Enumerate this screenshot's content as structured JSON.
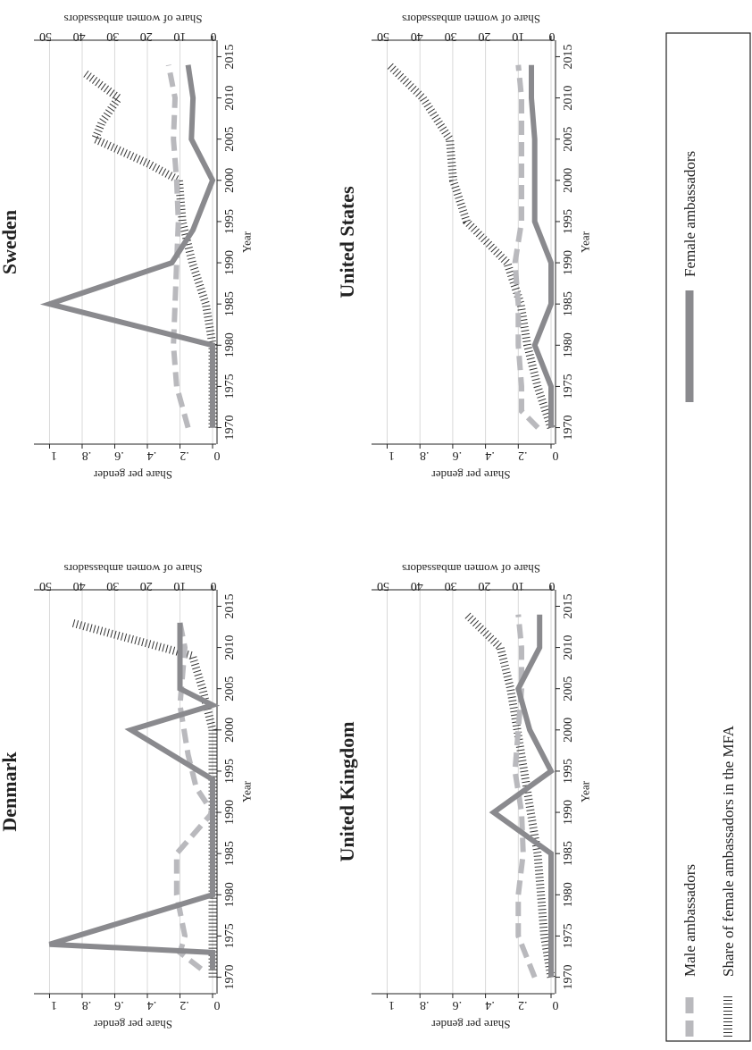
{
  "colors": {
    "female": "#8a8a8e",
    "male": "#b9b9bd",
    "mfa": "#333333",
    "grid": "#d9d9d9",
    "axis": "#222222"
  },
  "legend": {
    "female": "Female ambassadors",
    "male": "Male ambassadors",
    "mfa": "Share of female ambassadors in the MFA"
  },
  "chart_data": [
    {
      "type": "line",
      "title": "Sweden",
      "xlabel": "Year",
      "ylabel": "Share per gender",
      "y2label": "Share of women ambassadors",
      "xticks": [
        "1970",
        "1975",
        "1980",
        "1985",
        "1990",
        "1995",
        "2000",
        "2005",
        "2010",
        "2015"
      ],
      "yticks": [
        "0",
        ".2",
        ".4",
        ".6",
        ".8",
        "1"
      ],
      "y2ticks": [
        "0",
        "10",
        "20",
        "30",
        "40",
        "50"
      ],
      "xlim": [
        1968,
        2017
      ],
      "ylim": [
        0,
        1.03
      ],
      "y2lim": [
        0,
        50
      ],
      "grid": true,
      "series": [
        {
          "name": "Female ambassadors",
          "x": [
            1970,
            1980,
            1985,
            1990,
            1994,
            2000,
            2005,
            2010,
            2014
          ],
          "y": [
            0,
            0,
            1,
            0.25,
            0.12,
            0,
            0.13,
            0.12,
            0.15
          ]
        },
        {
          "name": "Male ambassadors",
          "x": [
            1970,
            1975,
            1980,
            1985,
            1990,
            1995,
            2000,
            2005,
            2010,
            2014
          ],
          "y": [
            0.15,
            0.22,
            0.24,
            0.23,
            0.22,
            0.21,
            0.22,
            0.24,
            0.23,
            0.27
          ]
        },
        {
          "name": "Share of female ambassadors in the MFA",
          "axis": "y2",
          "x": [
            1970,
            1975,
            1980,
            1985,
            1990,
            1995,
            2000,
            2002,
            2005,
            2007,
            2010,
            2013
          ],
          "y": [
            0,
            0,
            0,
            2,
            6,
            9,
            10,
            19,
            35,
            33,
            28,
            38
          ]
        }
      ]
    },
    {
      "type": "line",
      "title": "Denmark",
      "xlabel": "Year",
      "ylabel": "Share per gender",
      "y2label": "Share of women ambassadors",
      "xticks": [
        "1970",
        "1975",
        "1980",
        "1985",
        "1990",
        "1995",
        "2000",
        "2005",
        "2010",
        "2015"
      ],
      "yticks": [
        "0",
        ".2",
        ".4",
        ".6",
        ".8",
        "1"
      ],
      "y2ticks": [
        "0",
        "10",
        "20",
        "30",
        "40",
        "50"
      ],
      "xlim": [
        1968,
        2017
      ],
      "ylim": [
        0,
        1.03
      ],
      "y2lim": [
        0,
        50
      ],
      "grid": true,
      "series": [
        {
          "name": "Female ambassadors",
          "x": [
            1971,
            1973,
            1974,
            1980,
            1985,
            1990,
            1994,
            2000,
            2003,
            2005,
            2010,
            2013
          ],
          "y": [
            0,
            0,
            1,
            0,
            0,
            0,
            0,
            0.5,
            0,
            0.2,
            0.2,
            0.2
          ]
        },
        {
          "name": "Male ambassadors",
          "x": [
            1971,
            1973,
            1975,
            1980,
            1985,
            1990,
            1993,
            1997,
            2003,
            2010,
            2013
          ],
          "y": [
            0.07,
            0.2,
            0.17,
            0.22,
            0.22,
            0,
            0.1,
            0.15,
            0.2,
            0.17,
            0.2
          ]
        },
        {
          "name": "Share of female ambassadors in the MFA",
          "axis": "y2",
          "x": [
            1970,
            1980,
            1990,
            2000,
            2005,
            2009,
            2010,
            2013
          ],
          "y": [
            0,
            0,
            0,
            0,
            3,
            6,
            15,
            42
          ]
        }
      ]
    },
    {
      "type": "line",
      "title": "United States",
      "xlabel": "Year",
      "ylabel": "Share per gender",
      "y2label": "Share of women ambassadors",
      "xticks": [
        "1970",
        "1975",
        "1980",
        "1985",
        "1990",
        "1995",
        "2000",
        "2005",
        "2010",
        "2015"
      ],
      "yticks": [
        "0",
        ".2",
        ".4",
        ".6",
        ".8",
        "1"
      ],
      "y2ticks": [
        "0",
        "10",
        "20",
        "30",
        "40",
        "50"
      ],
      "xlim": [
        1968,
        2017
      ],
      "ylim": [
        0,
        1.03
      ],
      "y2lim": [
        0,
        50
      ],
      "grid": true,
      "series": [
        {
          "name": "Female ambassadors",
          "x": [
            1970,
            1975,
            1980,
            1985,
            1990,
            1995,
            2000,
            2005,
            2010,
            2014
          ],
          "y": [
            0,
            0,
            0.1,
            0,
            0,
            0.1,
            0.1,
            0.1,
            0.12,
            0.12
          ]
        },
        {
          "name": "Male ambassadors",
          "x": [
            1970,
            1972,
            1975,
            1980,
            1985,
            1990,
            1995,
            2000,
            2005,
            2010,
            2014
          ],
          "y": [
            0.08,
            0.18,
            0.18,
            0.2,
            0.2,
            0.22,
            0.18,
            0.18,
            0.18,
            0.18,
            0.2
          ]
        },
        {
          "name": "Share of female ambassadors in the MFA",
          "axis": "y2",
          "x": [
            1970,
            1975,
            1980,
            1985,
            1990,
            1995,
            2000,
            2005,
            2010,
            2014
          ],
          "y": [
            0,
            4,
            7,
            9,
            13,
            25,
            29,
            30,
            38,
            48
          ]
        }
      ]
    },
    {
      "type": "line",
      "title": "United Kingdom",
      "xlabel": "Year",
      "ylabel": "Share per gender",
      "y2label": "Share of women ambassadors",
      "xticks": [
        "1970",
        "1975",
        "1980",
        "1985",
        "1990",
        "1995",
        "2000",
        "2005",
        "2010",
        "2015"
      ],
      "yticks": [
        "0",
        ".2",
        ".4",
        ".6",
        ".8",
        "1"
      ],
      "y2ticks": [
        "0",
        "10",
        "20",
        "30",
        "40",
        "50"
      ],
      "xlim": [
        1968,
        2017
      ],
      "ylim": [
        0,
        1.03
      ],
      "y2lim": [
        0,
        50
      ],
      "grid": true,
      "series": [
        {
          "name": "Female ambassadors",
          "x": [
            1970,
            1975,
            1980,
            1985,
            1990,
            1995,
            2000,
            2005,
            2010,
            2014
          ],
          "y": [
            0,
            0,
            0,
            0,
            0.35,
            0,
            0.13,
            0.2,
            0.07,
            0.07
          ]
        },
        {
          "name": "Male ambassadors",
          "x": [
            1970,
            1975,
            1980,
            1985,
            1990,
            1995,
            2000,
            2005,
            2010,
            2014
          ],
          "y": [
            0.1,
            0.2,
            0.2,
            0.17,
            0.18,
            0.22,
            0.2,
            0.18,
            0.18,
            0.2
          ]
        },
        {
          "name": "Share of female ambassadors in the MFA",
          "axis": "y2",
          "x": [
            1970,
            1975,
            1980,
            1985,
            1990,
            1995,
            2000,
            2005,
            2010,
            2014
          ],
          "y": [
            0,
            2,
            3,
            4,
            6,
            8,
            10,
            12,
            15,
            25
          ]
        }
      ]
    }
  ]
}
